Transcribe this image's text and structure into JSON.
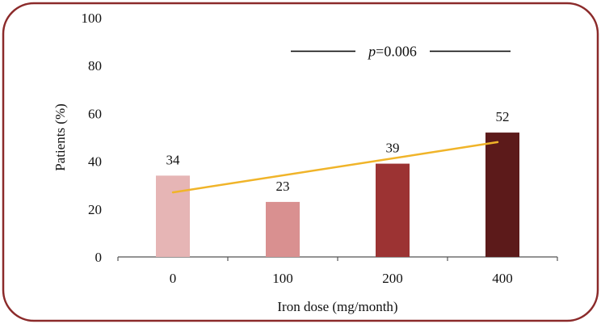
{
  "chart_data": {
    "type": "bar",
    "categories": [
      "0",
      "100",
      "200",
      "400"
    ],
    "values": [
      34,
      23,
      39,
      52
    ],
    "data_labels": [
      "34",
      "23",
      "39",
      "52"
    ],
    "bar_colors": [
      "#e6b5b5",
      "#d99090",
      "#9c3333",
      "#5c1a1a"
    ],
    "ylim": [
      0,
      100
    ],
    "yticks": [
      0,
      20,
      40,
      60,
      80,
      100
    ],
    "ytick_labels": [
      "0",
      "20",
      "40",
      "60",
      "80",
      "100"
    ],
    "xlabel": "Iron dose (mg/month)",
    "ylabel": "Patients (%)",
    "trendline": {
      "color": "#f0b429",
      "start": {
        "category": "0",
        "value": 27
      },
      "end": {
        "category": "400",
        "value": 48
      }
    },
    "annotation": {
      "p_symbol": "p",
      "p_rest": "=0.006",
      "value": 86
    },
    "grid": false,
    "legend": "none"
  },
  "frame_color": "#8b2a2a"
}
